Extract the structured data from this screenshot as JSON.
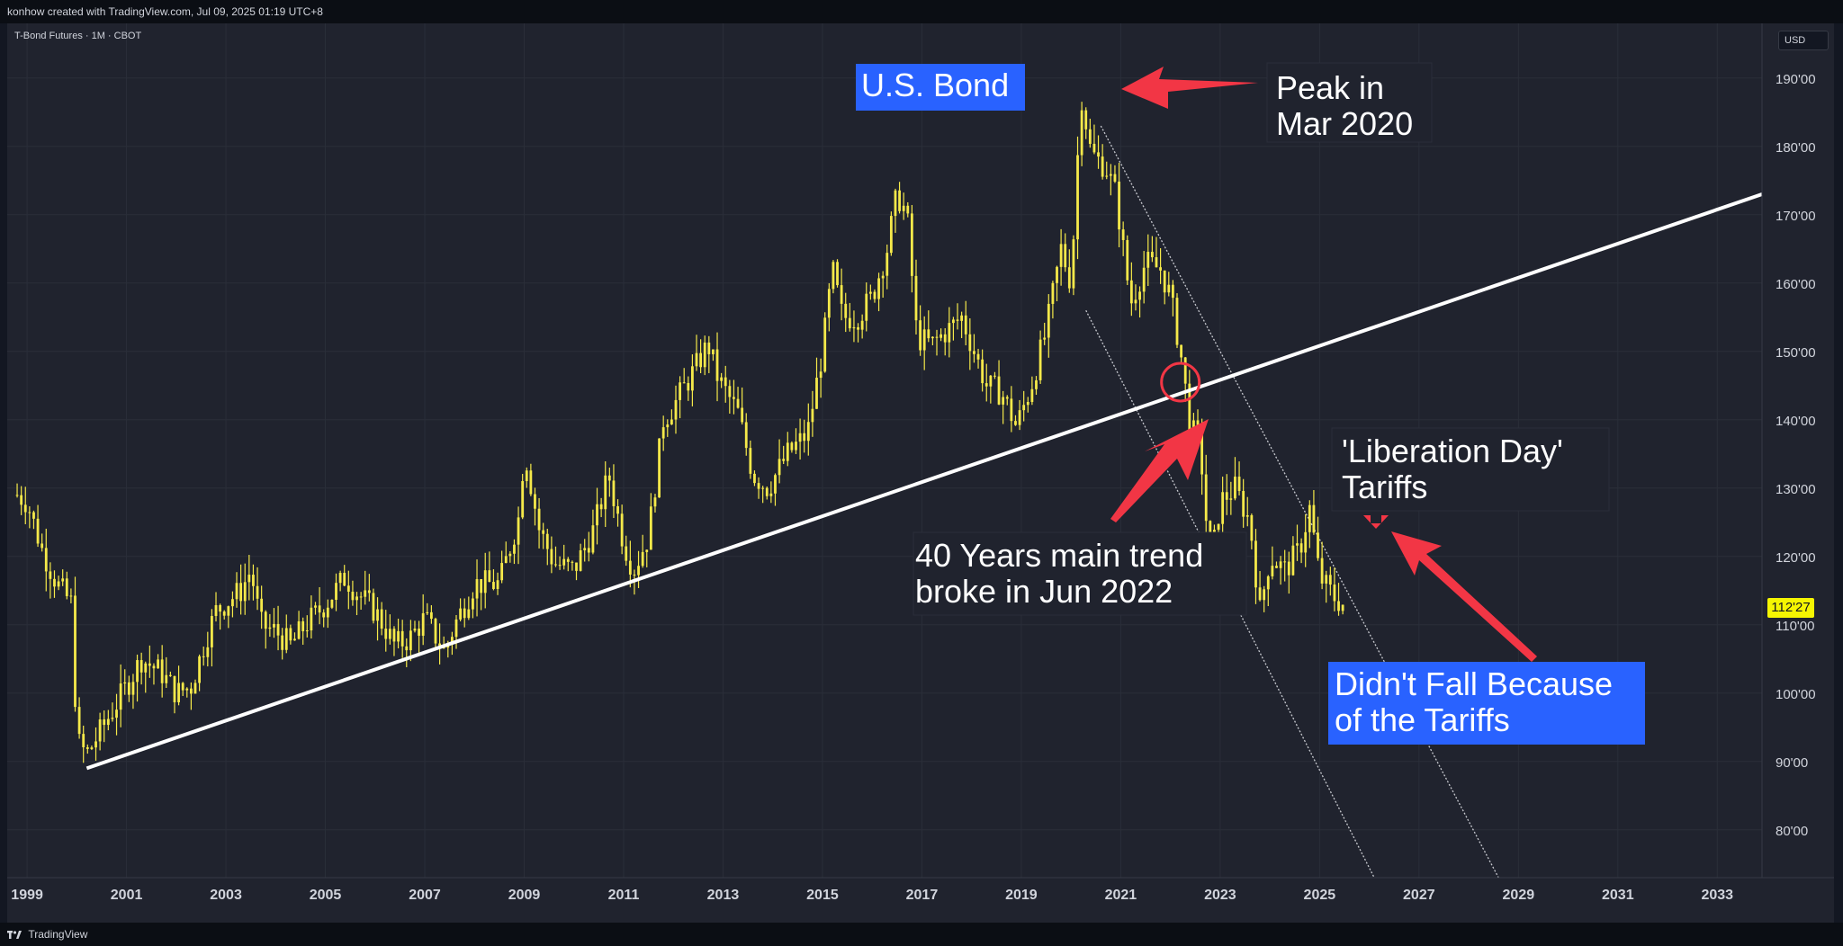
{
  "header": {
    "attribution": "konhow created with TradingView.com, Jul 09, 2025 01:19 UTC+8"
  },
  "symbol": "T-Bond Futures · 1M · CBOT",
  "currency": "USD",
  "footer": {
    "logo_icon": "tradingview-logo-icon",
    "brand": "TradingView"
  },
  "last_price": "112'27",
  "colors": {
    "background": "#20232e",
    "candles": "#f5e94a",
    "trendline": "#ffffff",
    "annotation_arrow": "#f23645",
    "blue_box": "#2962ff"
  },
  "annotations": {
    "bond_title": "U.S. Bond",
    "peak_line1": "Peak in",
    "peak_line2": "Mar 2020",
    "liberation_line1": "'Liberation Day'",
    "liberation_line2": "Tariffs",
    "trend_line1": "40 Years main trend",
    "trend_line2": "broke in Jun 2022",
    "didnt_line1": "Didn't Fall Because",
    "didnt_line2": "of the Tariffs"
  },
  "chart_data": {
    "type": "candlestick",
    "interval": "1M",
    "yaxis": {
      "ticks": [
        "80'00",
        "90'00",
        "100'00",
        "110'00",
        "120'00",
        "130'00",
        "140'00",
        "150'00",
        "160'00",
        "170'00",
        "180'00",
        "190'00"
      ],
      "range": [
        73,
        198
      ]
    },
    "xaxis": {
      "ticks": [
        "1999",
        "2001",
        "2003",
        "2005",
        "2007",
        "2009",
        "2011",
        "2013",
        "2015",
        "2017",
        "2019",
        "2021",
        "2023",
        "2025",
        "2027",
        "2029",
        "2031",
        "2033"
      ],
      "range": [
        1998.6,
        2033.9
      ]
    },
    "price_path": [
      [
        1998.8,
        129
      ],
      [
        1999.0,
        128
      ],
      [
        1999.3,
        121
      ],
      [
        1999.6,
        116
      ],
      [
        1999.9,
        113
      ],
      [
        2000.0,
        93
      ],
      [
        2000.2,
        91
      ],
      [
        2000.6,
        96
      ],
      [
        2001.0,
        101
      ],
      [
        2001.3,
        105
      ],
      [
        2001.7,
        103
      ],
      [
        2002.0,
        100
      ],
      [
        2002.3,
        101
      ],
      [
        2002.6,
        108
      ],
      [
        2002.8,
        112
      ],
      [
        2003.3,
        115
      ],
      [
        2003.5,
        118
      ],
      [
        2003.7,
        110
      ],
      [
        2004.0,
        109
      ],
      [
        2004.3,
        107
      ],
      [
        2004.6,
        110
      ],
      [
        2005.0,
        113
      ],
      [
        2005.4,
        117
      ],
      [
        2005.6,
        115
      ],
      [
        2006.0,
        112
      ],
      [
        2006.4,
        107
      ],
      [
        2006.7,
        108
      ],
      [
        2007.0,
        111
      ],
      [
        2007.4,
        106
      ],
      [
        2007.6,
        110
      ],
      [
        2008.0,
        116
      ],
      [
        2008.5,
        116
      ],
      [
        2008.9,
        126
      ],
      [
        2009.0,
        136
      ],
      [
        2009.3,
        124
      ],
      [
        2009.6,
        119
      ],
      [
        2010.0,
        118
      ],
      [
        2010.4,
        124
      ],
      [
        2010.7,
        132
      ],
      [
        2011.0,
        122
      ],
      [
        2011.2,
        118
      ],
      [
        2011.5,
        123
      ],
      [
        2011.8,
        140
      ],
      [
        2012.0,
        142
      ],
      [
        2012.4,
        147
      ],
      [
        2012.7,
        151
      ],
      [
        2012.9,
        146
      ],
      [
        2013.3,
        141
      ],
      [
        2013.6,
        132
      ],
      [
        2013.9,
        130
      ],
      [
        2014.3,
        135
      ],
      [
        2014.7,
        138
      ],
      [
        2015.0,
        150
      ],
      [
        2015.2,
        162
      ],
      [
        2015.4,
        155
      ],
      [
        2015.7,
        155
      ],
      [
        2016.0,
        158
      ],
      [
        2016.3,
        165
      ],
      [
        2016.5,
        173
      ],
      [
        2016.7,
        170
      ],
      [
        2016.9,
        152
      ],
      [
        2017.2,
        151
      ],
      [
        2017.5,
        153
      ],
      [
        2017.8,
        155
      ],
      [
        2018.0,
        151
      ],
      [
        2018.3,
        145
      ],
      [
        2018.6,
        144
      ],
      [
        2018.9,
        139
      ],
      [
        2019.2,
        145
      ],
      [
        2019.5,
        153
      ],
      [
        2019.8,
        165
      ],
      [
        2020.0,
        160
      ],
      [
        2020.2,
        188
      ],
      [
        2020.4,
        179
      ],
      [
        2020.7,
        177
      ],
      [
        2020.9,
        173
      ],
      [
        2021.2,
        157
      ],
      [
        2021.5,
        163
      ],
      [
        2021.8,
        162
      ],
      [
        2022.0,
        158
      ],
      [
        2022.2,
        150
      ],
      [
        2022.4,
        139
      ],
      [
        2022.6,
        136
      ],
      [
        2022.8,
        118
      ],
      [
        2023.0,
        128
      ],
      [
        2023.3,
        130
      ],
      [
        2023.6,
        125
      ],
      [
        2023.8,
        112
      ],
      [
        2024.0,
        120
      ],
      [
        2024.3,
        118
      ],
      [
        2024.6,
        121
      ],
      [
        2024.8,
        127
      ],
      [
        2025.0,
        117
      ],
      [
        2025.3,
        114
      ],
      [
        2025.5,
        112.8
      ]
    ],
    "trendline": {
      "from": [
        2000.2,
        89
      ],
      "to": [
        2033.9,
        173
      ]
    },
    "channel_lines": [
      {
        "from": [
          2020.3,
          156
        ],
        "to": [
          2026.1,
          73
        ]
      },
      {
        "from": [
          2020.6,
          183
        ],
        "to": [
          2028.6,
          73
        ]
      }
    ],
    "break_marker": [
      2022.2,
      145.5
    ]
  }
}
